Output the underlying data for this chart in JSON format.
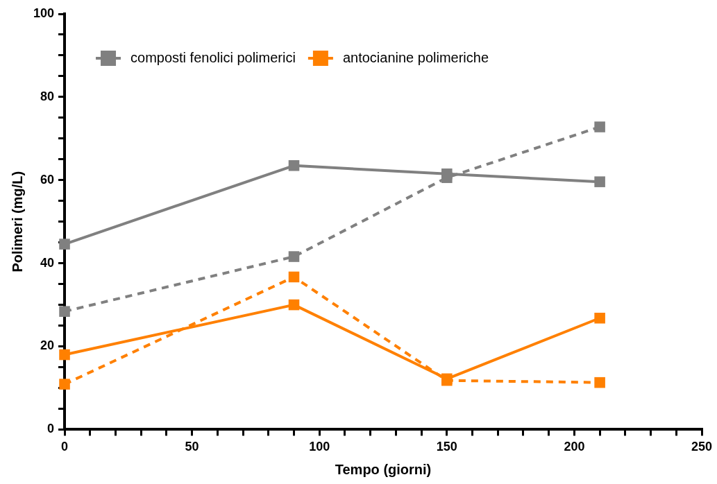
{
  "chart_data": {
    "type": "line",
    "xlabel": "Tempo (giorni)",
    "ylabel": "Polimeri (mg/L)",
    "xlim": [
      0,
      250
    ],
    "ylim": [
      0,
      100
    ],
    "xticks": [
      0,
      {
        "value": 10,
        "label": null
      },
      {
        "value": 20,
        "label": null
      },
      {
        "value": 30,
        "label": null
      },
      {
        "value": 40,
        "label": null
      },
      50,
      {
        "value": 60,
        "label": null
      },
      {
        "value": 70,
        "label": null
      },
      {
        "value": 80,
        "label": null
      },
      {
        "value": 90,
        "label": null
      },
      100,
      {
        "value": 110,
        "label": null
      },
      {
        "value": 120,
        "label": null
      },
      {
        "value": 130,
        "label": null
      },
      {
        "value": 140,
        "label": null
      },
      150,
      {
        "value": 160,
        "label": null
      },
      {
        "value": 170,
        "label": null
      },
      {
        "value": 180,
        "label": null
      },
      {
        "value": 190,
        "label": null
      },
      200,
      {
        "value": 210,
        "label": null
      },
      {
        "value": 220,
        "label": null
      },
      {
        "value": 230,
        "label": null
      },
      {
        "value": 240,
        "label": null
      },
      250
    ],
    "yticks": [
      0,
      {
        "value": 5,
        "label": null
      },
      {
        "value": 10,
        "label": null
      },
      {
        "value": 15,
        "label": null
      },
      20,
      {
        "value": 25,
        "label": null
      },
      {
        "value": 30,
        "label": null
      },
      {
        "value": 35,
        "label": null
      },
      40,
      {
        "value": 45,
        "label": null
      },
      {
        "value": 50,
        "label": null
      },
      {
        "value": 55,
        "label": null
      },
      60,
      {
        "value": 65,
        "label": null
      },
      {
        "value": 70,
        "label": null
      },
      {
        "value": 75,
        "label": null
      },
      80,
      {
        "value": 85,
        "label": null
      },
      {
        "value": 90,
        "label": null
      },
      {
        "value": 95,
        "label": null
      },
      100
    ],
    "x": [
      0,
      90,
      150,
      210
    ],
    "grid": false,
    "legend": "top left",
    "marker": "square",
    "series": [
      {
        "name": "composti fenolici polimerici",
        "color": "#808080",
        "line_style": "solid",
        "values": [
          44.6,
          63.5,
          61.5,
          59.6
        ]
      },
      {
        "name": "antocianine polimeriche",
        "color": "#ff8000",
        "line_style": "solid",
        "values": [
          18,
          30,
          12.2,
          26.8
        ]
      },
      {
        "color": "#808080",
        "line_style": "dashed",
        "values": [
          28.4,
          41.6,
          60.6,
          72.8
        ]
      },
      {
        "color": "#ff8000",
        "line_style": "dashed",
        "values": [
          10.9,
          36.7,
          11.8,
          11.3
        ]
      }
    ]
  }
}
